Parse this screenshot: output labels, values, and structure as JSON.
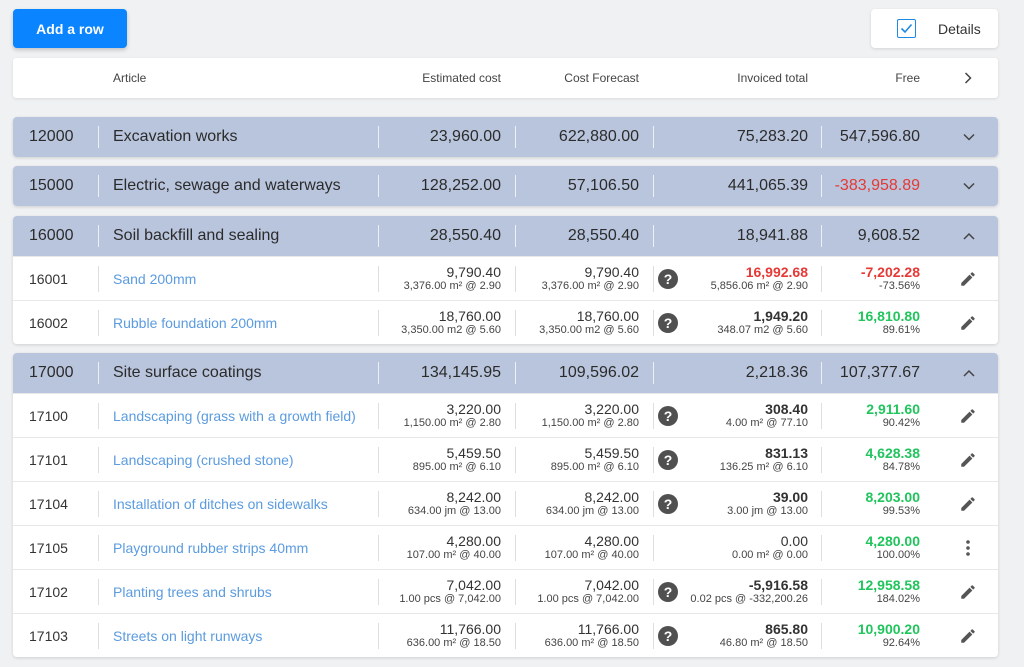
{
  "toolbar": {
    "add_row_label": "Add a row",
    "details_label": "Details",
    "details_checked": true
  },
  "header": {
    "article": "Article",
    "estimated": "Estimated cost",
    "forecast": "Cost Forecast",
    "invoiced": "Invoiced total",
    "free": "Free"
  },
  "groups": [
    {
      "code": "12000",
      "title": "Excavation works",
      "estimated": "23,960.00",
      "forecast": "622,880.00",
      "invoiced": "75,283.20",
      "free": "547,596.80",
      "free_negative": false,
      "expanded": false,
      "items": []
    },
    {
      "code": "15000",
      "title": "Electric, sewage and waterways",
      "estimated": "128,252.00",
      "forecast": "57,106.50",
      "invoiced": "441,065.39",
      "free": "-383,958.89",
      "free_negative": true,
      "expanded": false,
      "items": []
    },
    {
      "code": "16000",
      "title": "Soil backfill and sealing",
      "estimated": "28,550.40",
      "forecast": "28,550.40",
      "invoiced": "18,941.88",
      "free": "9,608.52",
      "free_negative": false,
      "expanded": true,
      "items": [
        {
          "code": "16001",
          "article": "Sand 200mm",
          "estimated": "9,790.40",
          "estimated_sub": "3,376.00 m² @ 2.90",
          "forecast": "9,790.40",
          "forecast_sub": "3,376.00 m² @ 2.90",
          "has_help": true,
          "invoiced": "16,992.68",
          "invoiced_sub": "5,856.06 m² @ 2.90",
          "invoiced_negative": true,
          "free": "-7,202.28",
          "free_pct": "-73.56%",
          "free_status": "negative",
          "action": "edit"
        },
        {
          "code": "16002",
          "article": "Rubble foundation 200mm",
          "estimated": "18,760.00",
          "estimated_sub": "3,350.00 m2 @ 5.60",
          "forecast": "18,760.00",
          "forecast_sub": "3,350.00 m2 @ 5.60",
          "has_help": true,
          "invoiced": "1,949.20",
          "invoiced_sub": "348.07 m2 @ 5.60",
          "invoiced_negative": false,
          "free": "16,810.80",
          "free_pct": "89.61%",
          "free_status": "positive",
          "action": "edit"
        }
      ]
    },
    {
      "code": "17000",
      "title": "Site surface coatings",
      "estimated": "134,145.95",
      "forecast": "109,596.02",
      "invoiced": "2,218.36",
      "free": "107,377.67",
      "free_negative": false,
      "expanded": true,
      "items": [
        {
          "code": "17100",
          "article": "Landscaping (grass with a growth field)",
          "estimated": "3,220.00",
          "estimated_sub": "1,150.00 m² @ 2.80",
          "forecast": "3,220.00",
          "forecast_sub": "1,150.00 m² @ 2.80",
          "has_help": true,
          "invoiced": "308.40",
          "invoiced_sub": "4.00 m² @ 77.10",
          "invoiced_negative": false,
          "free": "2,911.60",
          "free_pct": "90.42%",
          "free_status": "positive",
          "action": "edit"
        },
        {
          "code": "17101",
          "article": "Landscaping (crushed stone)",
          "estimated": "5,459.50",
          "estimated_sub": "895.00 m² @ 6.10",
          "forecast": "5,459.50",
          "forecast_sub": "895.00 m² @ 6.10",
          "has_help": true,
          "invoiced": "831.13",
          "invoiced_sub": "136.25 m² @ 6.10",
          "invoiced_negative": false,
          "free": "4,628.38",
          "free_pct": "84.78%",
          "free_status": "positive",
          "action": "edit"
        },
        {
          "code": "17104",
          "article": "Installation of ditches on sidewalks",
          "estimated": "8,242.00",
          "estimated_sub": "634.00 jm @ 13.00",
          "forecast": "8,242.00",
          "forecast_sub": "634.00 jm @ 13.00",
          "has_help": true,
          "invoiced": "39.00",
          "invoiced_sub": "3.00 jm @ 13.00",
          "invoiced_negative": false,
          "free": "8,203.00",
          "free_pct": "99.53%",
          "free_status": "positive",
          "action": "edit"
        },
        {
          "code": "17105",
          "article": "Playground rubber strips 40mm",
          "estimated": "4,280.00",
          "estimated_sub": "107.00 m² @ 40.00",
          "forecast": "4,280.00",
          "forecast_sub": "107.00 m² @ 40.00",
          "has_help": false,
          "invoiced": "0.00",
          "invoiced_sub": "0.00 m² @ 0.00",
          "invoiced_negative": false,
          "invoiced_plain": true,
          "free": "4,280.00",
          "free_pct": "100.00%",
          "free_status": "positive",
          "action": "menu"
        },
        {
          "code": "17102",
          "article": "Planting trees and shrubs",
          "estimated": "7,042.00",
          "estimated_sub": "1.00 pcs @ 7,042.00",
          "forecast": "7,042.00",
          "forecast_sub": "1.00 pcs @ 7,042.00",
          "has_help": true,
          "invoiced": "-5,916.58",
          "invoiced_sub": "0.02 pcs @ -332,200.26",
          "invoiced_negative": false,
          "free": "12,958.58",
          "free_pct": "184.02%",
          "free_status": "positive",
          "action": "edit"
        },
        {
          "code": "17103",
          "article": "Streets on light runways",
          "estimated": "11,766.00",
          "estimated_sub": "636.00 m² @ 18.50",
          "forecast": "11,766.00",
          "forecast_sub": "636.00 m² @ 18.50",
          "has_help": true,
          "invoiced": "865.80",
          "invoiced_sub": "46.80 m² @ 18.50",
          "invoiced_negative": false,
          "free": "10,900.20",
          "free_pct": "92.64%",
          "free_status": "positive",
          "action": "edit"
        }
      ]
    }
  ],
  "colors": {
    "accent": "#0a84ff",
    "group_bg": "#b9c5dd",
    "link": "#5b9bdf",
    "negative": "#e53935",
    "positive": "#21c45d"
  }
}
